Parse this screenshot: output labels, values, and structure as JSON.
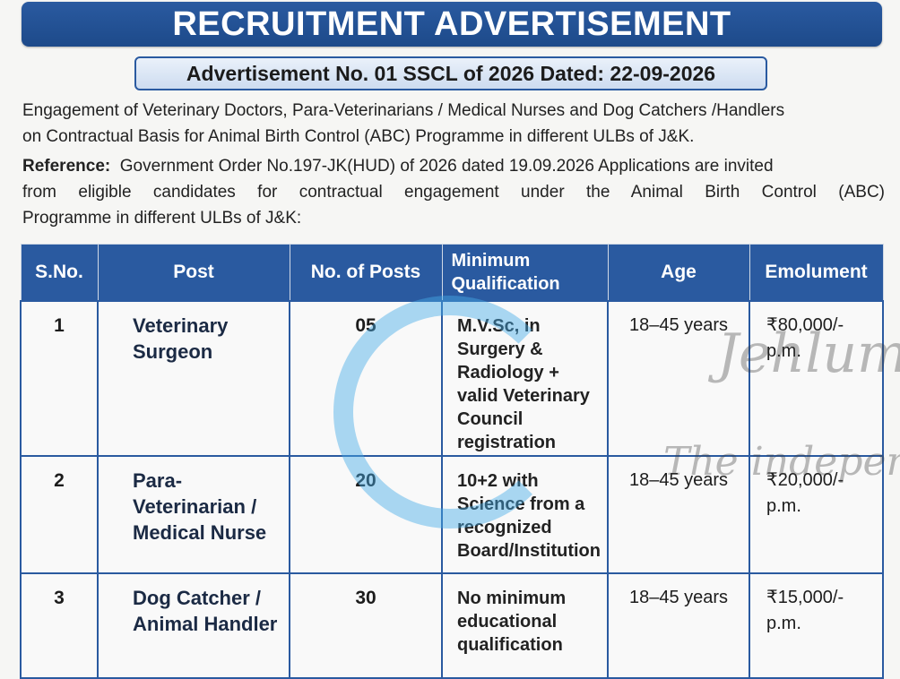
{
  "title": "RECRUITMENT ADVERTISEMENT",
  "advertisement_no": "Advertisement No. 01 SSCL of 2026 Dated: 22-09-2026",
  "intro": {
    "line1": "Engagement of Veterinary Doctors, Para-Veterinarians / Medical Nurses and Dog Catchers /Handlers",
    "line2": "on Contractual Basis for Animal Birth Control (ABC) Programme in different ULBs of J&K."
  },
  "reference": {
    "label": "Reference:",
    "line1": "Government Order No.197-JK(HUD) of 2026 dated 19.09.2026 Applications are invited",
    "line2": "from eligible candidates for contractual engagement under the Animal Birth Control (ABC)",
    "line3": "Programme in different ULBs of J&K:"
  },
  "table": {
    "headers": {
      "sno": "S.No.",
      "post": "Post",
      "posts": "No. of Posts",
      "qualification": "Minimum Qualification",
      "age": "Age",
      "emolument": "Emolument"
    },
    "rows": [
      {
        "sno": "1",
        "post": "Veterinary Surgeon",
        "posts": "05",
        "qualification": "M.V.Sc, in Surgery & Radiology + valid Veterinary Council registration",
        "age": "18–45 years",
        "emolument": "₹80,000/- p.m."
      },
      {
        "sno": "2",
        "post": "Para-Veterinarian / Medical Nurse",
        "posts": "20",
        "qualification": "10+2 with Science from a recognized Board/Institution",
        "age": "18–45 years",
        "emolument": "₹20,000/- p.m."
      },
      {
        "sno": "3",
        "post": "Dog Catcher / Animal Handler",
        "posts": "30",
        "qualification": "No minimum educational qualification",
        "age": "18–45 years",
        "emolument": "₹15,000/- p.m."
      }
    ]
  },
  "watermark": {
    "text1": "Jehlum",
    "text2": "The independent",
    "color": "#46aae6"
  },
  "colors": {
    "banner": "#2a5aa0"
  }
}
